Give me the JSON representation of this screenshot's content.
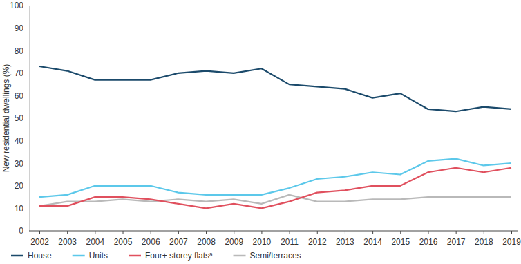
{
  "chart_data": {
    "type": "line",
    "y_label": "New residential dwellings (%)",
    "categories": [
      "2002",
      "2003",
      "2004",
      "2005",
      "2006",
      "2007",
      "2008",
      "2009",
      "2010",
      "2011",
      "2012",
      "2013",
      "2014",
      "2015",
      "2016",
      "2017",
      "2018",
      "2019"
    ],
    "series": [
      {
        "name": "House",
        "color": "#1b4a6b",
        "values": [
          73,
          71,
          67,
          67,
          67,
          70,
          71,
          70,
          72,
          65,
          64,
          63,
          59,
          61,
          54,
          53,
          55,
          54
        ]
      },
      {
        "name": "Units",
        "color": "#5cc8ea",
        "values": [
          15,
          16,
          20,
          20,
          20,
          17,
          16,
          16,
          16,
          19,
          23,
          24,
          26,
          25,
          31,
          32,
          29,
          30
        ]
      },
      {
        "name": "Four+ storey flatsᵃ",
        "color": "#e0505e",
        "values": [
          11,
          11,
          15,
          15,
          14,
          12,
          10,
          12,
          10,
          13,
          17,
          18,
          20,
          20,
          26,
          28,
          26,
          28
        ]
      },
      {
        "name": "Semi/terraces",
        "color": "#b9b9b9",
        "values": [
          11,
          13,
          13,
          14,
          13,
          14,
          13,
          14,
          12,
          16,
          13,
          13,
          14,
          14,
          15,
          15,
          15,
          15
        ]
      }
    ],
    "ylim": [
      0,
      100
    ],
    "yticks": [
      0,
      10,
      20,
      30,
      40,
      50,
      60,
      70,
      80,
      90,
      100
    ],
    "grid": false,
    "legend": "bottom"
  }
}
